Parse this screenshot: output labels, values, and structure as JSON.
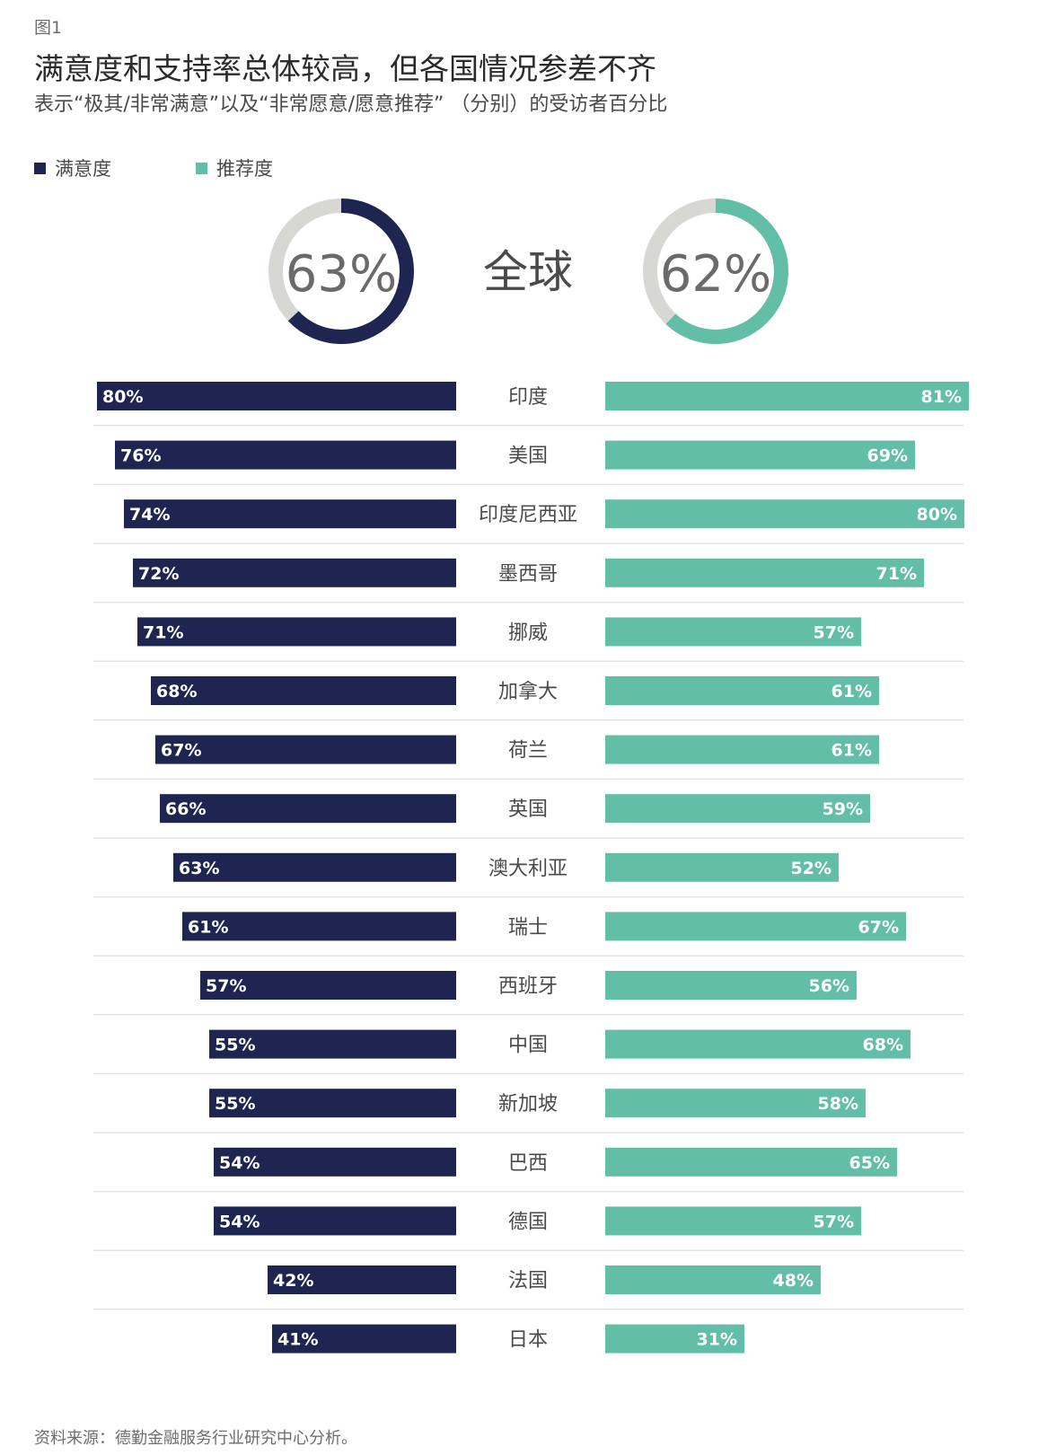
{
  "figure_label": "图1",
  "source": "资料来源：德勤金融服务行业研究中心分析。",
  "colors": {
    "satisfaction": "#1d2550",
    "recommend": "#62bea6",
    "donut_track": "#d7d8d3",
    "separator": "#e3e3e3",
    "category_text": "#4a4a4a",
    "donut_text": "#6a6a6a"
  },
  "chart_data": {
    "type": "bar",
    "title": "满意度和支持率总体较高，但各国情况参差不齐",
    "subtitle": "表示“极其/非常满意”以及“非常愿意/愿意推荐” （分别）的受访者百分比",
    "legend": {
      "placement": "top-left",
      "entries": [
        "满意度",
        "推荐度"
      ]
    },
    "global": {
      "label": "全球",
      "satisfaction": 63,
      "recommend": 62,
      "satisfaction_text": "63%",
      "recommend_text": "62%"
    },
    "value_max": 100,
    "categories": [
      "印度",
      "美国",
      "印度尼西亚",
      "墨西哥",
      "挪威",
      "加拿大",
      "荷兰",
      "英国",
      "澳大利亚",
      "瑞士",
      "西班牙",
      "中国",
      "新加坡",
      "巴西",
      "德国",
      "法国",
      "日本"
    ],
    "series": [
      {
        "name": "满意度",
        "values": [
          80,
          76,
          74,
          72,
          71,
          68,
          67,
          66,
          63,
          61,
          57,
          55,
          55,
          54,
          54,
          42,
          41
        ],
        "labels": [
          "80%",
          "76%",
          "74%",
          "72%",
          "71%",
          "68%",
          "67%",
          "66%",
          "63%",
          "61%",
          "57%",
          "55%",
          "55%",
          "54%",
          "54%",
          "42%",
          "41%"
        ]
      },
      {
        "name": "推荐度",
        "values": [
          81,
          69,
          80,
          71,
          57,
          61,
          61,
          59,
          52,
          67,
          56,
          68,
          58,
          65,
          57,
          48,
          31
        ],
        "labels": [
          "81%",
          "69%",
          "80%",
          "71%",
          "57%",
          "61%",
          "61%",
          "59%",
          "52%",
          "67%",
          "56%",
          "68%",
          "58%",
          "65%",
          "57%",
          "48%",
          "31%"
        ]
      }
    ]
  }
}
